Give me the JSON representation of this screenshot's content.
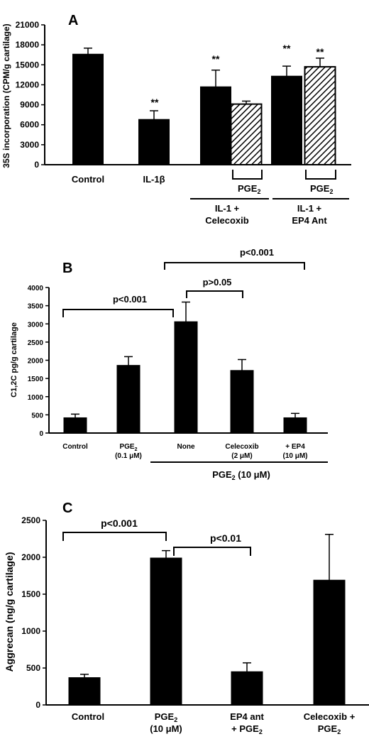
{
  "figure_colors": {
    "bar": "#000000",
    "background": "#ffffff"
  },
  "panel_a": {
    "letter": "A",
    "ylabel": "35S incorporation (CPM/g cartilage)",
    "y_ticks": [
      "0",
      "3000",
      "6000",
      "9000",
      "12000",
      "15000",
      "18000",
      "21000"
    ],
    "cat_labels": {
      "control": "Control",
      "il1b": "IL-1β"
    },
    "sig_marks": [
      "**",
      "**",
      "**",
      "**"
    ],
    "pge_labels": [
      "PGE",
      "PGE"
    ],
    "pge_subscripts": [
      "2",
      "2"
    ],
    "groups": {
      "celecoxib": {
        "line1": "IL-1 +",
        "line2": "Celecoxib"
      },
      "ep4": {
        "line1": "IL-1 +",
        "line2": "EP4 Ant"
      }
    }
  },
  "panel_b": {
    "letter": "B",
    "ylabel": "C1,2C pg/g cartilage",
    "y_ticks": [
      "0",
      "500",
      "1000",
      "1500",
      "2000",
      "2500",
      "3000",
      "3500",
      "4000"
    ],
    "cats": {
      "control": "Control",
      "pge_low_l1": "PGE",
      "pge_low_sub": "2",
      "pge_low_l2": "(0.1 μM)",
      "none": "None",
      "celecoxib_l1": "Celecoxib",
      "celecoxib_l2": "(2 μM)",
      "ep4_l1": "+ EP4",
      "ep4_l2": "(10 μM)"
    },
    "group_label": {
      "prefix": "PGE",
      "sub": "2",
      "suffix": " (10 μM)"
    },
    "pvalues": {
      "control_none": "p<0.001",
      "none_celecoxib": "p>0.05",
      "none_ep4": "p<0.001"
    }
  },
  "panel_c": {
    "letter": "C",
    "ylabel": "Aggrecan (ng/g cartilage)",
    "y_ticks": [
      "0",
      "500",
      "1000",
      "1500",
      "2000",
      "2500"
    ],
    "cats": {
      "control": "Control",
      "pge_l1": "PGE",
      "pge_sub": "2",
      "pge_l2": "(10 μM)",
      "ep4_l1": "EP4  ant",
      "ep4_l2_prefix": "+ PGE",
      "ep4_l2_sub": "2",
      "cel_l1": "Celecoxib +",
      "cel_l2_prefix": "PGE",
      "cel_l2_sub": "2"
    },
    "pvalues": {
      "control_pge": "p<0.001",
      "pge_ep4": "p<0.01"
    }
  },
  "chart_data": [
    {
      "type": "bar",
      "title": "A",
      "ylabel": "35S incorporation (CPM/g cartilage)",
      "ylim": [
        0,
        21000
      ],
      "categories": [
        "Control",
        "IL-1β",
        "IL-1 + Celecoxib",
        "IL-1 + Celecoxib + PGE2",
        "IL-1 + EP4 Ant",
        "IL-1 + EP4 Ant + PGE2"
      ],
      "values": [
        16600,
        6800,
        11700,
        9100,
        13300,
        14700
      ],
      "errors": [
        900,
        1300,
        2500,
        450,
        1500,
        1300
      ],
      "fills": [
        "solid",
        "solid",
        "solid",
        "hatched",
        "solid",
        "hatched"
      ],
      "annotations": [
        "",
        "**",
        "**",
        "",
        "**",
        "**"
      ]
    },
    {
      "type": "bar",
      "title": "B",
      "ylabel": "C1,2C pg/g cartilage",
      "ylim": [
        0,
        4000
      ],
      "categories": [
        "Control",
        "PGE2 (0.1 μM)",
        "None",
        "Celecoxib (2 μM)",
        "+ EP4 (10 μM)"
      ],
      "values": [
        420,
        1860,
        3060,
        1720,
        420
      ],
      "errors": [
        100,
        240,
        540,
        300,
        120
      ],
      "group_label": "PGE2 (10 μM)",
      "comparisons": [
        {
          "from": "Control",
          "to": "None",
          "label": "p<0.001"
        },
        {
          "from": "None",
          "to": "Celecoxib (2 μM)",
          "label": "p>0.05"
        },
        {
          "from": "None",
          "to": "+ EP4 (10 μM)",
          "label": "p<0.001"
        }
      ]
    },
    {
      "type": "bar",
      "title": "C",
      "ylabel": "Aggrecan (ng/g cartilage)",
      "ylim": [
        0,
        2500
      ],
      "categories": [
        "Control",
        "PGE2 (10 μM)",
        "EP4 ant + PGE2",
        "Celecoxib + PGE2"
      ],
      "values": [
        370,
        1990,
        450,
        1690
      ],
      "errors": [
        45,
        100,
        120,
        620
      ],
      "comparisons": [
        {
          "from": "Control",
          "to": "PGE2 (10 μM)",
          "label": "p<0.001"
        },
        {
          "from": "PGE2 (10 μM)",
          "to": "EP4 ant + PGE2",
          "label": "p<0.01"
        }
      ]
    }
  ]
}
